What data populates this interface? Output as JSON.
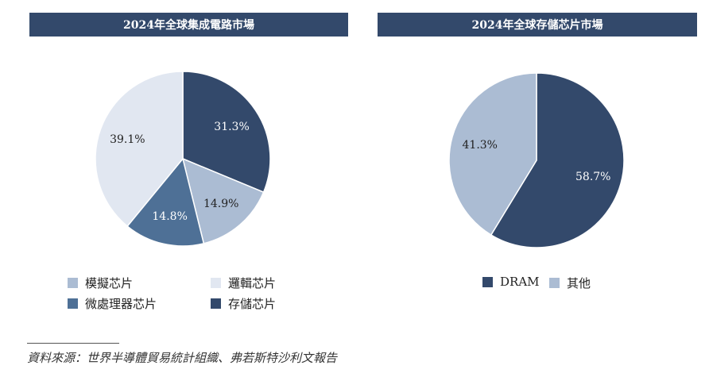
{
  "charts": {
    "left": {
      "title": "2024年全球集成電路市場",
      "slices": [
        {
          "label": "存儲芯片",
          "value": 31.3,
          "text": "31.3%",
          "color": "#33496b",
          "label_color": "#ffffff"
        },
        {
          "label": "模擬芯片",
          "value": 14.9,
          "text": "14.9%",
          "color": "#abbcd3",
          "label_color": "#222222"
        },
        {
          "label": "微處理器芯片",
          "value": 14.8,
          "text": "14.8%",
          "color": "#4e7096",
          "label_color": "#ffffff"
        },
        {
          "label": "邏輯芯片",
          "value": 39.1,
          "text": "39.1%",
          "color": "#e1e7f1",
          "label_color": "#222222"
        }
      ],
      "legend": [
        {
          "label": "模擬芯片",
          "color": "#abbcd3"
        },
        {
          "label": "邏輯芯片",
          "color": "#e1e7f1"
        },
        {
          "label": "微處理器芯片",
          "color": "#4e7096"
        },
        {
          "label": "存儲芯片",
          "color": "#33496b"
        }
      ]
    },
    "right": {
      "title": "2024年全球存儲芯片市場",
      "slices": [
        {
          "label": "DRAM",
          "value": 58.7,
          "text": "58.7%",
          "color": "#33496b",
          "label_color": "#ffffff"
        },
        {
          "label": "其他",
          "value": 41.3,
          "text": "41.3%",
          "color": "#abbcd3",
          "label_color": "#222222"
        }
      ],
      "legend": [
        {
          "label": "DRAM",
          "color": "#33496b"
        },
        {
          "label": "其他",
          "color": "#abbcd3"
        }
      ]
    }
  },
  "chart_data": [
    {
      "type": "pie",
      "title": "2024年全球集成電路市場",
      "categories": [
        "存儲芯片",
        "模擬芯片",
        "微處理器芯片",
        "邏輯芯片"
      ],
      "values": [
        31.3,
        14.9,
        14.8,
        39.1
      ],
      "unit": "%",
      "legend": "bottom"
    },
    {
      "type": "pie",
      "title": "2024年全球存儲芯片市場",
      "categories": [
        "DRAM",
        "其他"
      ],
      "values": [
        58.7,
        41.3
      ],
      "unit": "%",
      "legend": "bottom"
    }
  ],
  "footer": {
    "source": "資料來源：世界半導體貿易統計組織、弗若斯特沙利文報告"
  }
}
